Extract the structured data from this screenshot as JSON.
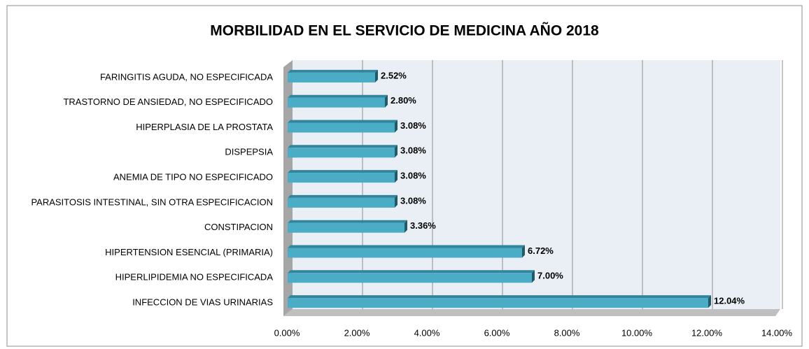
{
  "chart_data": {
    "type": "bar",
    "orientation": "horizontal",
    "title": "MORBILIDAD EN EL SERVICIO DE MEDICINA AÑO 2018",
    "categories": [
      "FARINGITIS AGUDA, NO ESPECIFICADA",
      "TRASTORNO DE ANSIEDAD, NO ESPECIFICADO",
      "HIPERPLASIA DE LA PROSTATA",
      "DISPEPSIA",
      "ANEMIA DE TIPO NO ESPECIFICADO",
      "PARASITOSIS INTESTINAL, SIN OTRA ESPECIFICACION",
      "CONSTIPACION",
      "HIPERTENSION ESENCIAL (PRIMARIA)",
      "HIPERLIPIDEMIA NO ESPECIFICADA",
      "INFECCION DE VIAS URINARIAS"
    ],
    "values": [
      2.52,
      2.8,
      3.08,
      3.08,
      3.08,
      3.08,
      3.36,
      6.72,
      7.0,
      12.04
    ],
    "value_labels": [
      "2.52%",
      "2.80%",
      "3.08%",
      "3.08%",
      "3.08%",
      "3.08%",
      "3.36%",
      "6.72%",
      "7.00%",
      "12.04%"
    ],
    "color": "#4bacc6",
    "xlim": [
      0,
      14
    ],
    "xticks": [
      {
        "value": 0,
        "label": "0.00%"
      },
      {
        "value": 2,
        "label": "2.00%"
      },
      {
        "value": 4,
        "label": "4.00%"
      },
      {
        "value": 6,
        "label": "6.00%"
      },
      {
        "value": 8,
        "label": "8.00%"
      },
      {
        "value": 10,
        "label": "10.00%"
      },
      {
        "value": 12,
        "label": "12.00%"
      },
      {
        "value": 14,
        "label": "14.00%"
      }
    ],
    "grid": true
  }
}
